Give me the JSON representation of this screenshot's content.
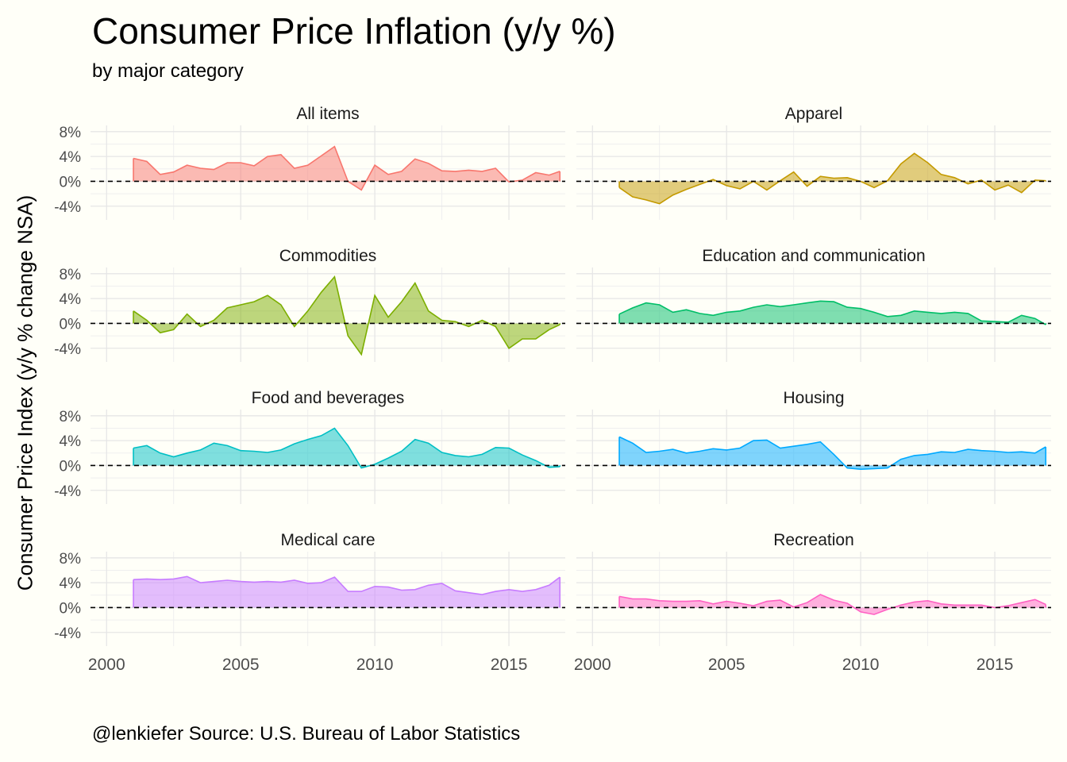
{
  "title": "Consumer Price Inflation (y/y %)",
  "subtitle": "by major category",
  "caption": "@lenkiefer Source: U.S. Bureau of Labor Statistics",
  "chart_data": {
    "type": "area",
    "ylabel": "Consumer Price Index (y/y % change NSA)",
    "xlabel": "",
    "xlim": [
      1999.4,
      2017.1
    ],
    "ylim": [
      -6.2,
      9.0
    ],
    "x_ticks": [
      "2000",
      "2005",
      "2010",
      "2015"
    ],
    "y_ticks": [
      "-4%",
      "0%",
      "4%",
      "8%"
    ],
    "reference_line": {
      "y": 0,
      "style": "dashed",
      "color": "#000000"
    },
    "grid": true,
    "legend": "none",
    "series": [
      {
        "name": "All items",
        "color": "#F8766D",
        "x": [
          2001.0,
          2001.5,
          2002.0,
          2002.5,
          2003.0,
          2003.5,
          2004.0,
          2004.5,
          2005.0,
          2005.5,
          2006.0,
          2006.5,
          2007.0,
          2007.5,
          2008.0,
          2008.5,
          2009.0,
          2009.5,
          2010.0,
          2010.5,
          2011.0,
          2011.5,
          2012.0,
          2012.5,
          2013.0,
          2013.5,
          2014.0,
          2014.5,
          2015.0,
          2015.5,
          2016.0,
          2016.5,
          2016.9
        ],
        "values": [
          3.7,
          3.2,
          1.1,
          1.5,
          2.6,
          2.1,
          1.9,
          3.0,
          3.0,
          2.5,
          4.0,
          4.3,
          2.1,
          2.6,
          4.1,
          5.6,
          0.0,
          -1.4,
          2.6,
          1.1,
          1.6,
          3.6,
          2.9,
          1.7,
          1.6,
          1.8,
          1.6,
          2.1,
          -0.1,
          0.2,
          1.4,
          1.0,
          1.6
        ]
      },
      {
        "name": "Apparel",
        "color": "#C49A00",
        "x": [
          2001.0,
          2001.5,
          2002.0,
          2002.5,
          2003.0,
          2003.5,
          2004.0,
          2004.5,
          2005.0,
          2005.5,
          2006.0,
          2006.5,
          2007.0,
          2007.5,
          2008.0,
          2008.5,
          2009.0,
          2009.5,
          2010.0,
          2010.5,
          2011.0,
          2011.5,
          2012.0,
          2012.5,
          2013.0,
          2013.5,
          2014.0,
          2014.5,
          2015.0,
          2015.5,
          2016.0,
          2016.5,
          2016.9
        ],
        "values": [
          -1.0,
          -2.5,
          -3.0,
          -3.6,
          -2.2,
          -1.3,
          -0.5,
          0.3,
          -0.7,
          -1.2,
          0.0,
          -1.4,
          0.1,
          1.5,
          -0.8,
          0.8,
          0.5,
          0.6,
          0.0,
          -1.0,
          0.1,
          2.8,
          4.5,
          3.0,
          1.1,
          0.6,
          -0.4,
          0.2,
          -1.4,
          -0.6,
          -1.8,
          0.2,
          0.1
        ]
      },
      {
        "name": "Commodities",
        "color": "#7CAE00",
        "x": [
          2001.0,
          2001.5,
          2002.0,
          2002.5,
          2003.0,
          2003.5,
          2004.0,
          2004.5,
          2005.0,
          2005.5,
          2006.0,
          2006.5,
          2007.0,
          2007.5,
          2008.0,
          2008.5,
          2009.0,
          2009.5,
          2010.0,
          2010.5,
          2011.0,
          2011.5,
          2012.0,
          2012.5,
          2013.0,
          2013.5,
          2014.0,
          2014.5,
          2015.0,
          2015.5,
          2016.0,
          2016.5,
          2016.9
        ],
        "values": [
          2.0,
          0.5,
          -1.5,
          -1.0,
          1.5,
          -0.5,
          0.5,
          2.5,
          3.0,
          3.5,
          4.5,
          3.0,
          -0.5,
          2.0,
          5.0,
          7.5,
          -2.0,
          -5.0,
          4.5,
          1.0,
          3.5,
          6.5,
          2.0,
          0.5,
          0.3,
          -0.5,
          0.5,
          -0.5,
          -4.0,
          -2.5,
          -2.5,
          -1.0,
          -0.2
        ]
      },
      {
        "name": "Education and communication",
        "color": "#00BE67",
        "x": [
          2001.0,
          2001.5,
          2002.0,
          2002.5,
          2003.0,
          2003.5,
          2004.0,
          2004.5,
          2005.0,
          2005.5,
          2006.0,
          2006.5,
          2007.0,
          2007.5,
          2008.0,
          2008.5,
          2009.0,
          2009.5,
          2010.0,
          2010.5,
          2011.0,
          2011.5,
          2012.0,
          2012.5,
          2013.0,
          2013.5,
          2014.0,
          2014.5,
          2015.0,
          2015.5,
          2016.0,
          2016.5,
          2016.9
        ],
        "values": [
          1.5,
          2.5,
          3.3,
          3.0,
          1.8,
          2.2,
          1.6,
          1.3,
          1.8,
          2.0,
          2.6,
          3.0,
          2.7,
          3.0,
          3.3,
          3.6,
          3.5,
          2.6,
          2.4,
          1.8,
          1.1,
          1.3,
          2.0,
          1.8,
          1.6,
          1.8,
          1.6,
          0.4,
          0.3,
          0.2,
          1.3,
          0.8,
          -0.2
        ]
      },
      {
        "name": "Food and beverages",
        "color": "#00BFC4",
        "x": [
          2001.0,
          2001.5,
          2002.0,
          2002.5,
          2003.0,
          2003.5,
          2004.0,
          2004.5,
          2005.0,
          2005.5,
          2006.0,
          2006.5,
          2007.0,
          2007.5,
          2008.0,
          2008.5,
          2009.0,
          2009.5,
          2010.0,
          2010.5,
          2011.0,
          2011.5,
          2012.0,
          2012.5,
          2013.0,
          2013.5,
          2014.0,
          2014.5,
          2015.0,
          2015.5,
          2016.0,
          2016.5,
          2016.9
        ],
        "values": [
          2.8,
          3.2,
          2.0,
          1.4,
          2.0,
          2.5,
          3.6,
          3.2,
          2.4,
          2.3,
          2.1,
          2.5,
          3.5,
          4.2,
          4.8,
          6.0,
          3.2,
          -0.4,
          0.2,
          1.2,
          2.3,
          4.2,
          3.6,
          2.1,
          1.6,
          1.4,
          1.8,
          2.9,
          2.8,
          1.7,
          0.8,
          -0.3,
          -0.2
        ]
      },
      {
        "name": "Housing",
        "color": "#00A9FF",
        "x": [
          2001.0,
          2001.5,
          2002.0,
          2002.5,
          2003.0,
          2003.5,
          2004.0,
          2004.5,
          2005.0,
          2005.5,
          2006.0,
          2006.5,
          2007.0,
          2007.5,
          2008.0,
          2008.5,
          2009.0,
          2009.5,
          2010.0,
          2010.5,
          2011.0,
          2011.5,
          2012.0,
          2012.5,
          2013.0,
          2013.5,
          2014.0,
          2014.5,
          2015.0,
          2015.5,
          2016.0,
          2016.5,
          2016.9
        ],
        "values": [
          4.6,
          3.6,
          2.1,
          2.3,
          2.6,
          2.0,
          2.3,
          2.7,
          2.5,
          2.8,
          4.0,
          4.1,
          2.8,
          3.1,
          3.4,
          3.8,
          1.8,
          -0.4,
          -0.6,
          -0.5,
          -0.4,
          1.0,
          1.6,
          1.8,
          2.2,
          2.1,
          2.6,
          2.4,
          2.3,
          2.1,
          2.2,
          2.0,
          3.0
        ]
      },
      {
        "name": "Medical care",
        "color": "#C77CFF",
        "x": [
          2001.0,
          2001.5,
          2002.0,
          2002.5,
          2003.0,
          2003.5,
          2004.0,
          2004.5,
          2005.0,
          2005.5,
          2006.0,
          2006.5,
          2007.0,
          2007.5,
          2008.0,
          2008.5,
          2009.0,
          2009.5,
          2010.0,
          2010.5,
          2011.0,
          2011.5,
          2012.0,
          2012.5,
          2013.0,
          2013.5,
          2014.0,
          2014.5,
          2015.0,
          2015.5,
          2016.0,
          2016.5,
          2016.9
        ],
        "values": [
          4.5,
          4.6,
          4.5,
          4.6,
          5.0,
          4.0,
          4.2,
          4.4,
          4.2,
          4.1,
          4.2,
          4.1,
          4.4,
          3.9,
          4.0,
          4.9,
          2.6,
          2.6,
          3.4,
          3.3,
          2.8,
          2.9,
          3.6,
          3.9,
          2.7,
          2.4,
          2.1,
          2.6,
          2.9,
          2.6,
          2.9,
          3.6,
          4.9
        ]
      },
      {
        "name": "Recreation",
        "color": "#FF61C3",
        "x": [
          2001.0,
          2001.5,
          2002.0,
          2002.5,
          2003.0,
          2003.5,
          2004.0,
          2004.5,
          2005.0,
          2005.5,
          2006.0,
          2006.5,
          2007.0,
          2007.5,
          2008.0,
          2008.5,
          2009.0,
          2009.5,
          2010.0,
          2010.5,
          2011.0,
          2011.5,
          2012.0,
          2012.5,
          2013.0,
          2013.5,
          2014.0,
          2014.5,
          2015.0,
          2015.5,
          2016.0,
          2016.5,
          2016.9
        ],
        "values": [
          1.8,
          1.4,
          1.4,
          1.1,
          1.0,
          1.0,
          1.1,
          0.6,
          1.0,
          0.7,
          0.3,
          1.0,
          1.2,
          0.1,
          0.8,
          2.1,
          1.2,
          0.7,
          -0.7,
          -1.1,
          -0.3,
          0.4,
          0.9,
          1.1,
          0.6,
          0.4,
          0.4,
          0.4,
          0.0,
          0.3,
          0.8,
          1.3,
          0.5
        ]
      }
    ]
  }
}
